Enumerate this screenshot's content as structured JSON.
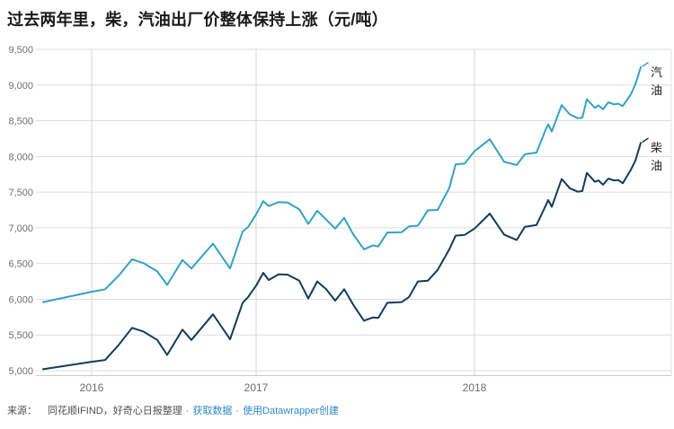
{
  "title": "过去两年里，柴，汽油出厂价整体保持上涨（元/吨）",
  "chart_data": {
    "type": "line",
    "title": "过去两年里，柴，汽油出厂价整体保持上涨（元/吨）",
    "unit": "元/吨",
    "ylim": [
      5000,
      9500
    ],
    "grid": true,
    "legend_position": "direct-labels-right",
    "y_ticks": [
      {
        "label": "9,500",
        "value": 9500
      },
      {
        "label": "9,000",
        "value": 9000
      },
      {
        "label": "8,500",
        "value": 8500
      },
      {
        "label": "8,000",
        "value": 8000
      },
      {
        "label": "7,500",
        "value": 7500
      },
      {
        "label": "7,000",
        "value": 7000
      },
      {
        "label": "6,500",
        "value": 6500
      },
      {
        "label": "6,000",
        "value": 6000
      },
      {
        "label": "5,500",
        "value": 5500
      },
      {
        "label": "5,000",
        "value": 5000
      }
    ],
    "x_ticks": [
      {
        "label": "2016",
        "x": 102
      },
      {
        "label": "2017",
        "x": 285
      },
      {
        "label": "2018",
        "x": 528
      }
    ],
    "series": [
      {
        "name": "汽油",
        "color": "#35a1c4",
        "points": [
          [
            48,
            5960
          ],
          [
            102,
            6105
          ],
          [
            117,
            6140
          ],
          [
            132,
            6330
          ],
          [
            147,
            6560
          ],
          [
            160,
            6505
          ],
          [
            175,
            6390
          ],
          [
            186,
            6200
          ],
          [
            203,
            6550
          ],
          [
            213,
            6430
          ],
          [
            237,
            6780
          ],
          [
            256,
            6430
          ],
          [
            270,
            6950
          ],
          [
            276,
            7010
          ],
          [
            285,
            7190
          ],
          [
            293,
            7375
          ],
          [
            299,
            7305
          ],
          [
            310,
            7360
          ],
          [
            320,
            7355
          ],
          [
            333,
            7260
          ],
          [
            343,
            7055
          ],
          [
            353,
            7240
          ],
          [
            363,
            7115
          ],
          [
            373,
            6990
          ],
          [
            383,
            7140
          ],
          [
            393,
            6910
          ],
          [
            405,
            6700
          ],
          [
            415,
            6755
          ],
          [
            421,
            6740
          ],
          [
            431,
            6935
          ],
          [
            447,
            6940
          ],
          [
            455,
            7020
          ],
          [
            465,
            7030
          ],
          [
            476,
            7245
          ],
          [
            487,
            7250
          ],
          [
            500,
            7560
          ],
          [
            507,
            7890
          ],
          [
            517,
            7900
          ],
          [
            528,
            8075
          ],
          [
            545,
            8240
          ],
          [
            561,
            7925
          ],
          [
            575,
            7880
          ],
          [
            584,
            8030
          ],
          [
            597,
            8055
          ],
          [
            607,
            8370
          ],
          [
            610,
            8450
          ],
          [
            614,
            8350
          ],
          [
            625,
            8720
          ],
          [
            634,
            8590
          ],
          [
            643,
            8535
          ],
          [
            648,
            8545
          ],
          [
            653,
            8800
          ],
          [
            662,
            8680
          ],
          [
            666,
            8715
          ],
          [
            671,
            8660
          ],
          [
            677,
            8760
          ],
          [
            683,
            8730
          ],
          [
            688,
            8740
          ],
          [
            693,
            8705
          ],
          [
            702,
            8870
          ],
          [
            707,
            9010
          ],
          [
            713,
            9250
          ]
        ]
      },
      {
        "name": "柴油",
        "color": "#103d5d",
        "points": [
          [
            48,
            5020
          ],
          [
            102,
            5125
          ],
          [
            117,
            5150
          ],
          [
            132,
            5360
          ],
          [
            147,
            5600
          ],
          [
            160,
            5545
          ],
          [
            175,
            5430
          ],
          [
            186,
            5220
          ],
          [
            203,
            5575
          ],
          [
            213,
            5430
          ],
          [
            237,
            5790
          ],
          [
            256,
            5440
          ],
          [
            270,
            5950
          ],
          [
            276,
            6030
          ],
          [
            285,
            6190
          ],
          [
            293,
            6370
          ],
          [
            299,
            6270
          ],
          [
            310,
            6350
          ],
          [
            320,
            6345
          ],
          [
            333,
            6260
          ],
          [
            343,
            6010
          ],
          [
            353,
            6250
          ],
          [
            363,
            6140
          ],
          [
            373,
            5980
          ],
          [
            383,
            6140
          ],
          [
            393,
            5925
          ],
          [
            405,
            5700
          ],
          [
            415,
            5745
          ],
          [
            421,
            5740
          ],
          [
            431,
            5950
          ],
          [
            447,
            5960
          ],
          [
            455,
            6030
          ],
          [
            465,
            6250
          ],
          [
            476,
            6260
          ],
          [
            487,
            6410
          ],
          [
            500,
            6700
          ],
          [
            507,
            6890
          ],
          [
            517,
            6900
          ],
          [
            528,
            6990
          ],
          [
            545,
            7200
          ],
          [
            561,
            6905
          ],
          [
            575,
            6830
          ],
          [
            584,
            7015
          ],
          [
            597,
            7040
          ],
          [
            607,
            7305
          ],
          [
            610,
            7390
          ],
          [
            614,
            7295
          ],
          [
            625,
            7685
          ],
          [
            634,
            7555
          ],
          [
            643,
            7505
          ],
          [
            648,
            7515
          ],
          [
            653,
            7770
          ],
          [
            662,
            7645
          ],
          [
            666,
            7665
          ],
          [
            671,
            7605
          ],
          [
            677,
            7690
          ],
          [
            683,
            7665
          ],
          [
            688,
            7670
          ],
          [
            693,
            7625
          ],
          [
            702,
            7815
          ],
          [
            707,
            7940
          ],
          [
            713,
            8190
          ]
        ]
      }
    ],
    "colors": {
      "grid_h": "#dedede",
      "grid_v": "#d6d6d6",
      "axis": "#c9c9c9",
      "plot_border_right": "#e2e2e2",
      "tick_text": "#6e6e6e",
      "series_label_text": "#222222"
    }
  },
  "footer": {
    "source_label": "来源：",
    "source_text": "同花顺IFIND，好奇心日报整理",
    "separator": "·",
    "links": [
      {
        "label": "获取数据"
      },
      {
        "label": "使用Datawrapper创建"
      }
    ],
    "link_color": "#2d8ac4"
  }
}
